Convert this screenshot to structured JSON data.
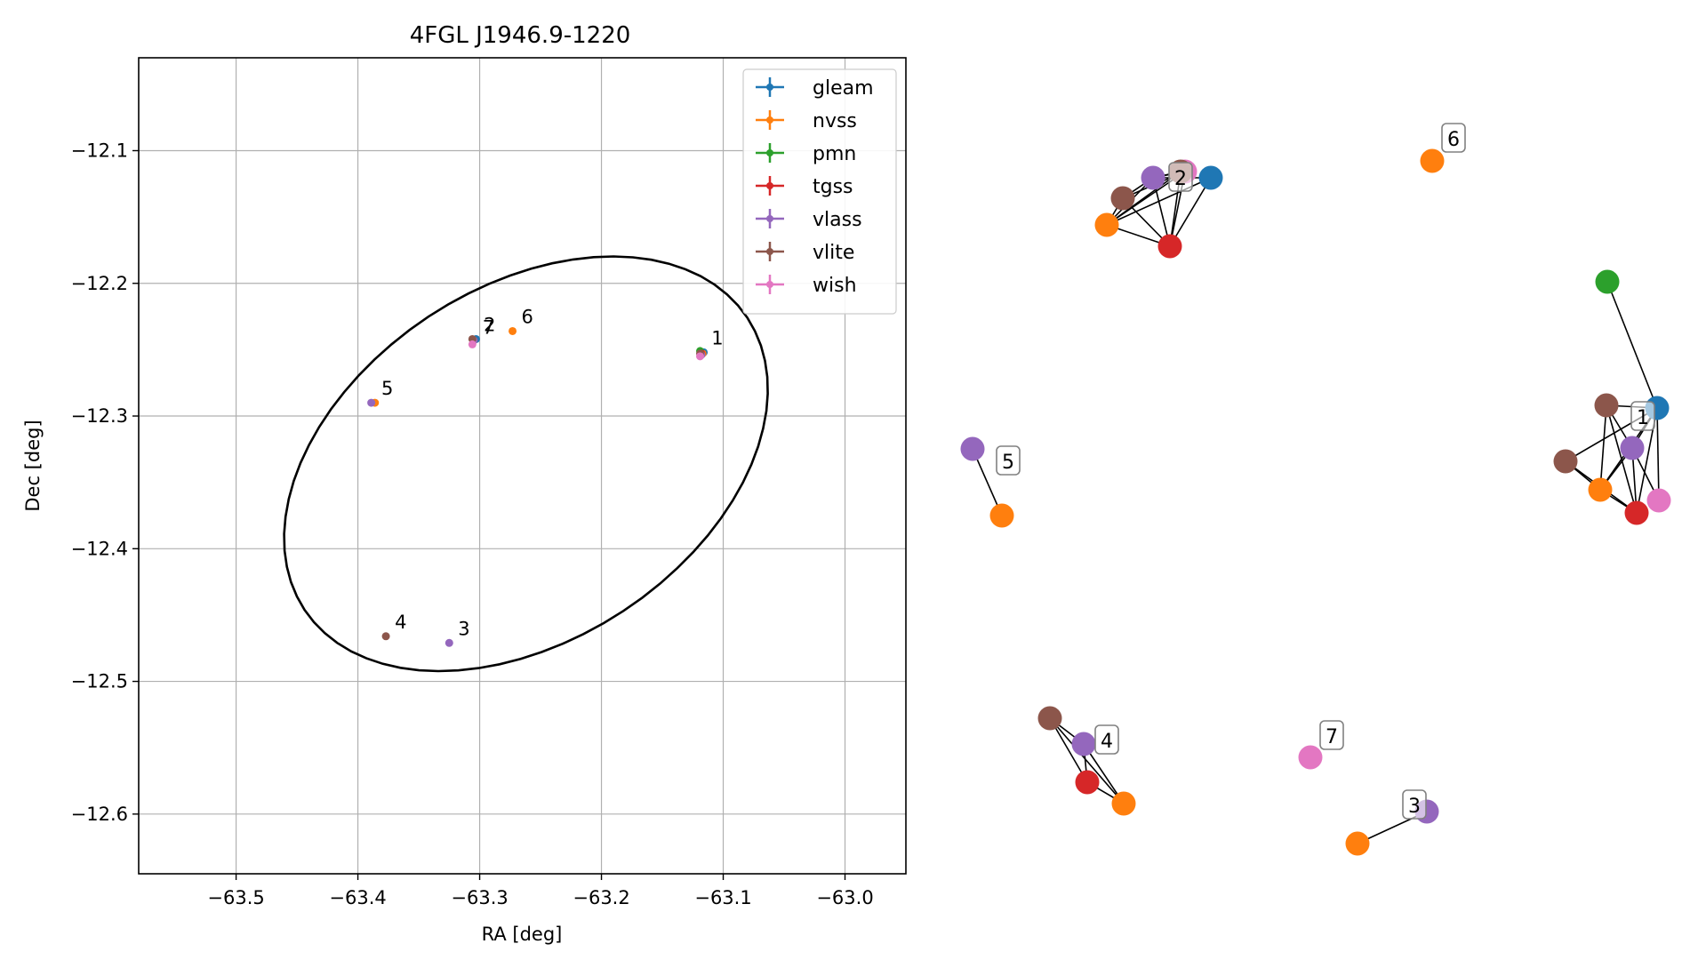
{
  "chart_data": [
    {
      "type": "scatter",
      "title": "4FGL J1946.9-1220",
      "xlabel": "RA [deg]",
      "ylabel": "Dec [deg]",
      "xlim": [
        -63.58,
        -62.95
      ],
      "ylim": [
        -12.645,
        -12.03
      ],
      "xticks": [
        -63.5,
        -63.4,
        -63.3,
        -63.2,
        -63.1,
        -63.0
      ],
      "yticks": [
        -12.1,
        -12.2,
        -12.3,
        -12.4,
        -12.5,
        -12.6
      ],
      "xtick_labels": [
        "−63.5",
        "−63.4",
        "−63.3",
        "−63.2",
        "−63.1",
        "−63.0"
      ],
      "ytick_labels": [
        "−12.1",
        "−12.2",
        "−12.3",
        "−12.4",
        "−12.5",
        "−12.6"
      ],
      "grid": true,
      "legend_position": "top-right",
      "ellipse": {
        "center_ra": -63.262,
        "center_dec": -12.336,
        "semi_major": 0.213,
        "semi_minor": 0.136,
        "angle_deg": 28
      },
      "series": [
        {
          "name": "gleam",
          "color": "#1f77b4",
          "points": [
            {
              "ra": -63.116,
              "dec": -12.252
            },
            {
              "ra": -63.303,
              "dec": -12.242
            }
          ]
        },
        {
          "name": "nvss",
          "color": "#ff7f0e",
          "points": [
            {
              "ra": -63.117,
              "dec": -12.253
            },
            {
              "ra": -63.305,
              "dec": -12.243
            },
            {
              "ra": -63.273,
              "dec": -12.236
            },
            {
              "ra": -63.386,
              "dec": -12.29
            }
          ]
        },
        {
          "name": "pmn",
          "color": "#2ca02c",
          "points": [
            {
              "ra": -63.119,
              "dec": -12.251
            }
          ]
        },
        {
          "name": "tgss",
          "color": "#d62728",
          "points": [
            {
              "ra": -63.118,
              "dec": -12.253
            },
            {
              "ra": -63.305,
              "dec": -12.243
            }
          ]
        },
        {
          "name": "vlass",
          "color": "#9467bd",
          "points": [
            {
              "ra": -63.118,
              "dec": -12.254
            },
            {
              "ra": -63.305,
              "dec": -12.243
            },
            {
              "ra": -63.389,
              "dec": -12.29
            },
            {
              "ra": -63.325,
              "dec": -12.471
            }
          ]
        },
        {
          "name": "vlite",
          "color": "#8c564b",
          "points": [
            {
              "ra": -63.119,
              "dec": -12.253
            },
            {
              "ra": -63.306,
              "dec": -12.242
            },
            {
              "ra": -63.377,
              "dec": -12.466
            }
          ]
        },
        {
          "name": "wish",
          "color": "#e377c2",
          "points": [
            {
              "ra": -63.119,
              "dec": -12.255
            },
            {
              "ra": -63.306,
              "dec": -12.246
            }
          ]
        }
      ],
      "annotations": [
        {
          "text": "1",
          "ra": -63.117,
          "dec": -12.252
        },
        {
          "text": "2",
          "ra": -63.304,
          "dec": -12.242
        },
        {
          "text": "7",
          "ra": -63.305,
          "dec": -12.244
        },
        {
          "text": "6",
          "ra": -63.273,
          "dec": -12.236
        },
        {
          "text": "5",
          "ra": -63.388,
          "dec": -12.29
        },
        {
          "text": "4",
          "ra": -63.377,
          "dec": -12.466
        },
        {
          "text": "3",
          "ra": -63.325,
          "dec": -12.471
        }
      ]
    },
    {
      "type": "network",
      "clusters": [
        {
          "label": "1",
          "nodes": [
            {
              "id": "a",
              "survey": "pmn",
              "color": "#2ca02c"
            },
            {
              "id": "b",
              "survey": "gleam",
              "color": "#1f77b4"
            },
            {
              "id": "c",
              "survey": "vlite",
              "color": "#8c564b"
            },
            {
              "id": "d",
              "survey": "vlass",
              "color": "#9467bd"
            },
            {
              "id": "e",
              "survey": "vlite",
              "color": "#8c564b"
            },
            {
              "id": "f",
              "survey": "nvss",
              "color": "#ff7f0e"
            },
            {
              "id": "g",
              "survey": "tgss",
              "color": "#d62728"
            },
            {
              "id": "h",
              "survey": "wish",
              "color": "#e377c2"
            }
          ],
          "edges": [
            [
              "a",
              "b"
            ],
            [
              "b",
              "c"
            ],
            [
              "b",
              "d"
            ],
            [
              "b",
              "e"
            ],
            [
              "b",
              "f"
            ],
            [
              "b",
              "g"
            ],
            [
              "b",
              "h"
            ],
            [
              "c",
              "d"
            ],
            [
              "c",
              "f"
            ],
            [
              "c",
              "g"
            ],
            [
              "d",
              "f"
            ],
            [
              "d",
              "g"
            ],
            [
              "d",
              "h"
            ],
            [
              "e",
              "f"
            ],
            [
              "e",
              "g"
            ],
            [
              "f",
              "g"
            ]
          ]
        },
        {
          "label": "2",
          "nodes": [
            {
              "id": "a",
              "survey": "gleam",
              "color": "#1f77b4"
            },
            {
              "id": "b",
              "survey": "wish",
              "color": "#e377c2"
            },
            {
              "id": "c",
              "survey": "vlite",
              "color": "#8c564b"
            },
            {
              "id": "d",
              "survey": "vlass",
              "color": "#9467bd"
            },
            {
              "id": "e",
              "survey": "vlite",
              "color": "#8c564b"
            },
            {
              "id": "f",
              "survey": "nvss",
              "color": "#ff7f0e"
            },
            {
              "id": "g",
              "survey": "tgss",
              "color": "#d62728"
            }
          ],
          "edges": [
            [
              "a",
              "d"
            ],
            [
              "a",
              "f"
            ],
            [
              "a",
              "g"
            ],
            [
              "b",
              "d"
            ],
            [
              "b",
              "e"
            ],
            [
              "b",
              "f"
            ],
            [
              "b",
              "g"
            ],
            [
              "c",
              "d"
            ],
            [
              "c",
              "f"
            ],
            [
              "c",
              "g"
            ],
            [
              "d",
              "e"
            ],
            [
              "d",
              "f"
            ],
            [
              "d",
              "g"
            ],
            [
              "e",
              "f"
            ],
            [
              "e",
              "g"
            ],
            [
              "f",
              "g"
            ]
          ]
        },
        {
          "label": "3",
          "nodes": [
            {
              "id": "a",
              "survey": "vlass",
              "color": "#9467bd"
            },
            {
              "id": "b",
              "survey": "nvss",
              "color": "#ff7f0e"
            }
          ],
          "edges": [
            [
              "a",
              "b"
            ]
          ]
        },
        {
          "label": "4",
          "nodes": [
            {
              "id": "a",
              "survey": "vlite",
              "color": "#8c564b"
            },
            {
              "id": "b",
              "survey": "vlass",
              "color": "#9467bd"
            },
            {
              "id": "c",
              "survey": "tgss",
              "color": "#d62728"
            },
            {
              "id": "d",
              "survey": "nvss",
              "color": "#ff7f0e"
            }
          ],
          "edges": [
            [
              "a",
              "b"
            ],
            [
              "a",
              "c"
            ],
            [
              "a",
              "d"
            ],
            [
              "b",
              "c"
            ],
            [
              "b",
              "d"
            ],
            [
              "c",
              "d"
            ]
          ]
        },
        {
          "label": "5",
          "nodes": [
            {
              "id": "a",
              "survey": "vlass",
              "color": "#9467bd"
            },
            {
              "id": "b",
              "survey": "nvss",
              "color": "#ff7f0e"
            }
          ],
          "edges": [
            [
              "a",
              "b"
            ]
          ]
        },
        {
          "label": "6",
          "nodes": [
            {
              "id": "a",
              "survey": "nvss",
              "color": "#ff7f0e"
            }
          ],
          "edges": []
        },
        {
          "label": "7",
          "nodes": [
            {
              "id": "a",
              "survey": "wish",
              "color": "#e377c2"
            }
          ],
          "edges": []
        }
      ]
    }
  ]
}
